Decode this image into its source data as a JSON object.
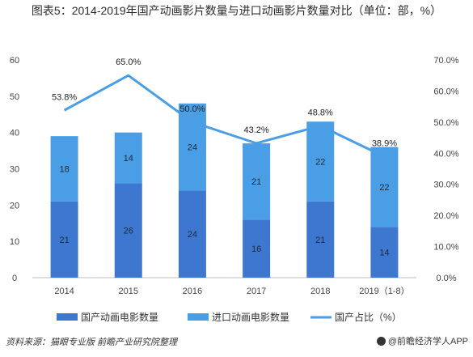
{
  "title": "图表5：2014-2019年国产动画影片数量与进口动画影片数量对比（单位：部，%）",
  "source": "资料来源：猫眼专业版 前瞻产业研究院整理",
  "brand": "@前瞻经济学人APP",
  "colors": {
    "domestic": "#3e77cf",
    "imported": "#4a9ee6",
    "line": "#4a9ee6"
  },
  "chart_data": {
    "type": "bar",
    "stacked": true,
    "categories": [
      "2014",
      "2015",
      "2016",
      "2017",
      "2018",
      "2019（1-8）"
    ],
    "series": [
      {
        "name": "国产动画电影数量",
        "values": [
          21,
          26,
          24,
          16,
          21,
          14
        ]
      },
      {
        "name": "进口动画电影数量",
        "values": [
          18,
          14,
          24,
          21,
          22,
          22
        ]
      },
      {
        "name": "国产占比（%）",
        "type": "line",
        "axis": "right",
        "values": [
          53.8,
          65.0,
          50.0,
          43.2,
          48.8,
          38.9
        ],
        "labels": [
          "53.8%",
          "65.0%",
          "50.0%",
          "43.2%",
          "48.8%",
          "38.9%"
        ]
      }
    ],
    "ylim": [
      0,
      60
    ],
    "yticks": [
      "0",
      "10",
      "20",
      "30",
      "40",
      "50",
      "60"
    ],
    "y2lim": [
      0,
      70
    ],
    "y2ticks": [
      "0.0%",
      "10.0%",
      "20.0%",
      "30.0%",
      "40.0%",
      "50.0%",
      "60.0%",
      "70.0%"
    ],
    "grid": false,
    "legend": "bottom"
  }
}
